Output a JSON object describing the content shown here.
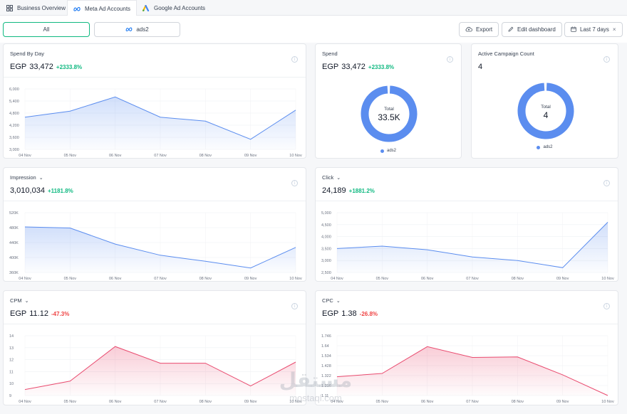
{
  "tabs": [
    {
      "label": "Business Overview",
      "icon": "grid-icon",
      "active": false
    },
    {
      "label": "Meta Ad Accounts",
      "icon": "meta-icon",
      "active": true
    },
    {
      "label": "Google Ad Accounts",
      "icon": "google-ads-icon",
      "active": false
    }
  ],
  "filters": {
    "all_label": "All",
    "account_label": "ads2"
  },
  "toolbar": {
    "export_label": "Export",
    "edit_label": "Edit dashboard",
    "date_label": "Last 7 days",
    "clear_symbol": "×"
  },
  "colors": {
    "accent": "#5b8def",
    "positive": "#10b981",
    "negative": "#ef4444",
    "pink": "#e94b6f"
  },
  "cards": {
    "spend_by_day": {
      "title": "Spend By Day",
      "currency": "EGP",
      "value": "33,472",
      "delta": "+2333.8%"
    },
    "spend": {
      "title": "Spend",
      "currency": "EGP",
      "value": "33,472",
      "delta": "+2333.8%",
      "donut_total_label": "Total",
      "donut_total": "33.5K",
      "legend": "ads2"
    },
    "active_campaign": {
      "title": "Active Campaign Count",
      "value": "4",
      "donut_total_label": "Total",
      "donut_total": "4",
      "legend": "ads2"
    },
    "impression": {
      "title": "Impression",
      "value": "3,010,034",
      "delta": "+1181.8%"
    },
    "click": {
      "title": "Click",
      "value": "24,189",
      "delta": "+1881.2%"
    },
    "cpm": {
      "title": "CPM",
      "currency": "EGP",
      "value": "11.12",
      "delta": "-47.3%"
    },
    "cpc": {
      "title": "CPC",
      "currency": "EGP",
      "value": "1.38",
      "delta": "-26.8%"
    }
  },
  "watermark": {
    "arabic": "مستقل",
    "latin": "mostaql.com"
  },
  "chart_data": [
    {
      "id": "spend_by_day",
      "type": "area",
      "x": [
        "04 Nov",
        "05 Nov",
        "06 Nov",
        "07 Nov",
        "08 Nov",
        "09 Nov",
        "10 Nov"
      ],
      "yticks": [
        "6,000",
        "5,400",
        "4,800",
        "4,200",
        "3,600",
        "3,000"
      ],
      "ylim": [
        3000,
        6000
      ],
      "values": [
        4600,
        4900,
        5600,
        4600,
        4400,
        3500,
        4950
      ],
      "color": "#5b8def"
    },
    {
      "id": "impression",
      "type": "area",
      "x": [
        "04 Nov",
        "05 Nov",
        "06 Nov",
        "07 Nov",
        "08 Nov",
        "09 Nov",
        "10 Nov"
      ],
      "yticks": [
        "520K",
        "480K",
        "440K",
        "400K",
        "360K"
      ],
      "ylim": [
        360000,
        520000
      ],
      "values": [
        482000,
        479000,
        436000,
        406000,
        390000,
        372000,
        427000
      ],
      "color": "#5b8def"
    },
    {
      "id": "click",
      "type": "area",
      "x": [
        "04 Nov",
        "05 Nov",
        "06 Nov",
        "07 Nov",
        "08 Nov",
        "09 Nov",
        "10 Nov"
      ],
      "yticks": [
        "5,000",
        "4,500",
        "4,000",
        "3,500",
        "3,000",
        "2,500"
      ],
      "ylim": [
        2500,
        5000
      ],
      "values": [
        3500,
        3600,
        3450,
        3150,
        3000,
        2700,
        4600
      ],
      "color": "#5b8def"
    },
    {
      "id": "cpm",
      "type": "area",
      "x": [
        "04 Nov",
        "05 Nov",
        "06 Nov",
        "07 Nov",
        "08 Nov",
        "09 Nov",
        "10 Nov"
      ],
      "yticks": [
        "14",
        "13",
        "12",
        "11",
        "10",
        "9"
      ],
      "ylim": [
        9,
        14
      ],
      "values": [
        9.5,
        10.2,
        13.1,
        11.7,
        11.7,
        9.8,
        11.8
      ],
      "color": "#e94b6f"
    },
    {
      "id": "cpc",
      "type": "area",
      "x": [
        "04 Nov",
        "05 Nov",
        "06 Nov",
        "07 Nov",
        "08 Nov",
        "09 Nov",
        "10 Nov"
      ],
      "yticks": [
        "1.746",
        "1.64",
        "1.534",
        "1.428",
        "1.322",
        "1.216",
        "1.11"
      ],
      "ylim": [
        1.11,
        1.746
      ],
      "values": [
        1.31,
        1.345,
        1.63,
        1.515,
        1.52,
        1.33,
        1.11
      ],
      "color": "#e94b6f"
    },
    {
      "id": "spend_donut",
      "type": "pie",
      "categories": [
        "ads2"
      ],
      "values": [
        100
      ],
      "color": "#5b8def"
    },
    {
      "id": "campaign_donut",
      "type": "pie",
      "categories": [
        "ads2"
      ],
      "values": [
        100
      ],
      "color": "#5b8def"
    }
  ]
}
